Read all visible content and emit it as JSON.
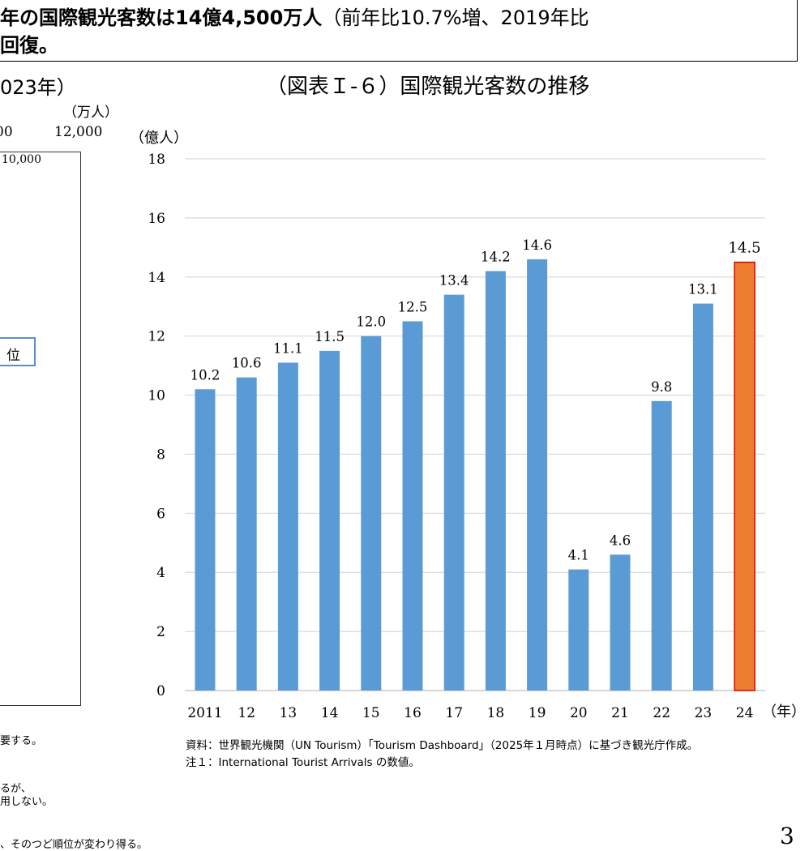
{
  "headline": {
    "line1_bold": "年の国際観光客数は14億4,500万人",
    "line1_normal": "（前年比10.7%増、2019年比",
    "line2_bold": "回復。"
  },
  "left_panel": {
    "title_fragment": "023年）",
    "unit": "（万人）",
    "tick_partial": "00",
    "tick_12000": "12,000",
    "value_10000": "10,000",
    "rank_box_text": "位",
    "notes": [
      "要する。",
      "るが、",
      "用しない。",
      "、そのつど順位が変わり得る。"
    ]
  },
  "chart_data": {
    "type": "bar",
    "title": "（図表Ｉ-６）国際観光客数の推移",
    "ylabel": "（億人）",
    "xlabel": "（年）",
    "ylim": [
      0,
      18
    ],
    "yticks": [
      0,
      2,
      4,
      6,
      8,
      10,
      12,
      14,
      16,
      18
    ],
    "grid": true,
    "categories": [
      "2011",
      "12",
      "13",
      "14",
      "15",
      "16",
      "17",
      "18",
      "19",
      "20",
      "21",
      "22",
      "23",
      "24"
    ],
    "values": [
      10.2,
      10.6,
      11.1,
      11.5,
      12.0,
      12.5,
      13.4,
      14.2,
      14.6,
      4.1,
      4.6,
      9.8,
      13.1,
      14.5
    ],
    "data_labels": [
      "10.2",
      "10.6",
      "11.1",
      "11.5",
      "12.0",
      "12.5",
      "13.4",
      "14.2",
      "14.6",
      "4.1",
      "4.6",
      "9.8",
      "13.1",
      "14.5"
    ],
    "colors": {
      "default": "#5b9bd5",
      "highlight": "#ed7d31",
      "highlight_border": "#e00000"
    },
    "highlight_index": 13
  },
  "footnotes": {
    "source": "資料：世界観光機関（UN Tourism）「Tourism Dashboard」（2025年１月時点）に基づき観光庁作成。",
    "note1": "注１：International Tourist Arrivals の数値。"
  },
  "page_number": "3"
}
